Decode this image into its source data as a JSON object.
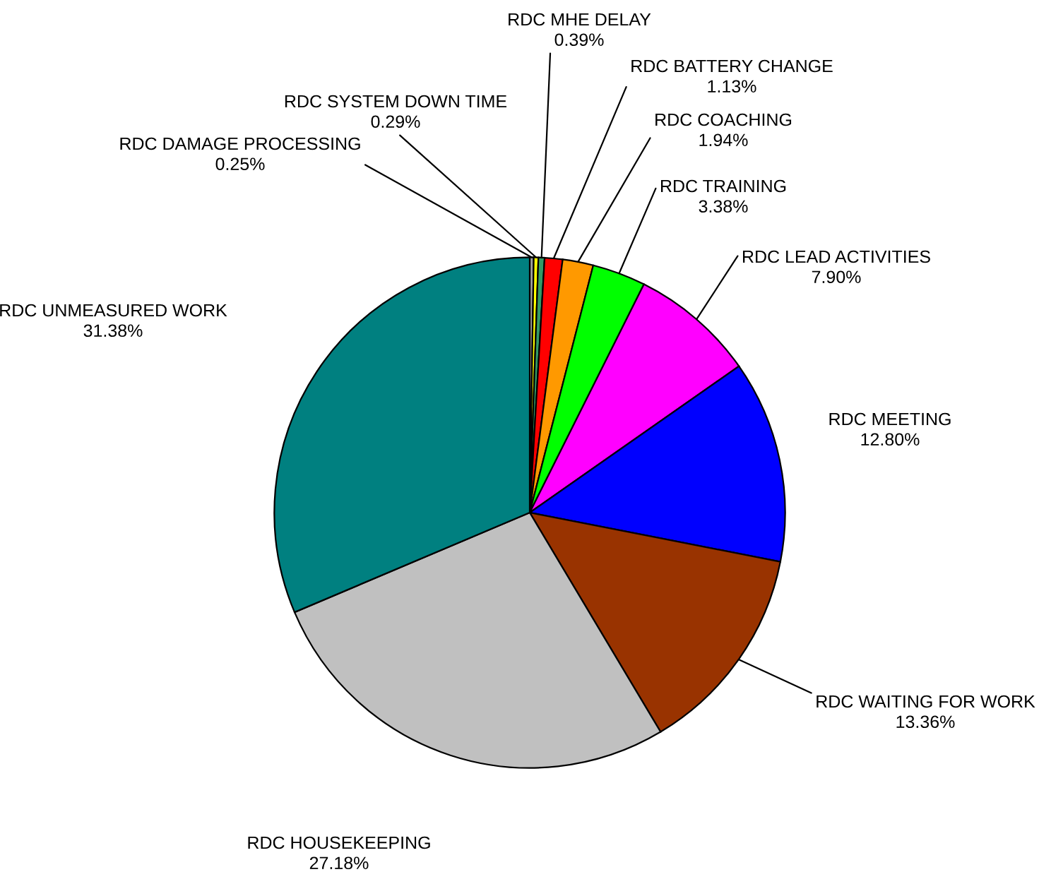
{
  "chart_data": {
    "type": "pie",
    "categories": [
      "RDC DAMAGE PROCESSING",
      "RDC SYSTEM DOWN TIME",
      "RDC MHE DELAY",
      "RDC BATTERY CHANGE",
      "RDC COACHING",
      "RDC TRAINING",
      "RDC LEAD ACTIVITIES",
      "RDC MEETING",
      "RDC WAITING FOR WORK",
      "RDC HOUSEKEEPING",
      "RDC UNMEASURED WORK"
    ],
    "values": [
      0.25,
      0.29,
      0.39,
      1.13,
      1.94,
      3.38,
      7.9,
      12.8,
      13.36,
      27.18,
      31.38
    ],
    "value_labels": [
      "0.25%",
      "0.29%",
      "0.39%",
      "1.13%",
      "1.94%",
      "3.38%",
      "7.90%",
      "12.80%",
      "13.36%",
      "27.18%",
      "31.38%"
    ],
    "colors": [
      "#a0a0a0",
      "#ffff00",
      "#339966",
      "#ff0000",
      "#ff9900",
      "#00ff00",
      "#ff00ff",
      "#0000ff",
      "#993300",
      "#c0c0c0",
      "#008080"
    ],
    "legend": false
  }
}
